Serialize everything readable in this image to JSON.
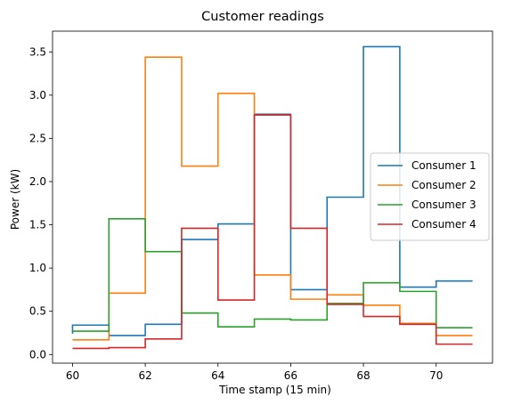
{
  "chart_data": {
    "type": "line",
    "step": "post",
    "title": "Customer readings",
    "xlabel": "Time stamp (15 min)",
    "ylabel": "Power (kW)",
    "xlim": [
      59.45,
      71.55
    ],
    "ylim": [
      -0.1,
      3.74
    ],
    "xticks": [
      60,
      62,
      64,
      66,
      68,
      70
    ],
    "yticks": [
      0.0,
      0.5,
      1.0,
      1.5,
      2.0,
      2.5,
      3.0,
      3.5
    ],
    "yticklabels": [
      "0.0",
      "0.5",
      "1.0",
      "1.5",
      "2.0",
      "2.5",
      "3.0",
      "3.5"
    ],
    "legend_position": "center-right",
    "grid": false,
    "x": [
      60,
      61,
      62,
      63,
      64,
      65,
      66,
      67,
      68,
      69,
      70,
      71
    ],
    "series": [
      {
        "name": "Consumer 1",
        "color": "#1f77b4",
        "values": [
          0.34,
          0.22,
          0.35,
          1.33,
          1.51,
          2.78,
          0.75,
          1.82,
          3.56,
          0.78,
          0.85,
          0.85
        ],
        "first_point": 0.24
      },
      {
        "name": "Consumer 2",
        "color": "#ff7f0e",
        "values": [
          0.17,
          0.71,
          3.44,
          2.18,
          3.02,
          0.92,
          0.64,
          0.69,
          0.57,
          0.36,
          0.22,
          0.22
        ]
      },
      {
        "name": "Consumer 3",
        "color": "#2ca02c",
        "values": [
          0.27,
          1.57,
          1.19,
          0.48,
          0.32,
          0.41,
          0.4,
          0.59,
          0.83,
          0.73,
          0.31,
          0.31
        ]
      },
      {
        "name": "Consumer 4",
        "color": "#d62728",
        "values": [
          0.07,
          0.08,
          0.18,
          1.46,
          0.63,
          2.77,
          1.46,
          0.58,
          0.44,
          0.35,
          0.12,
          0.12
        ]
      }
    ]
  }
}
